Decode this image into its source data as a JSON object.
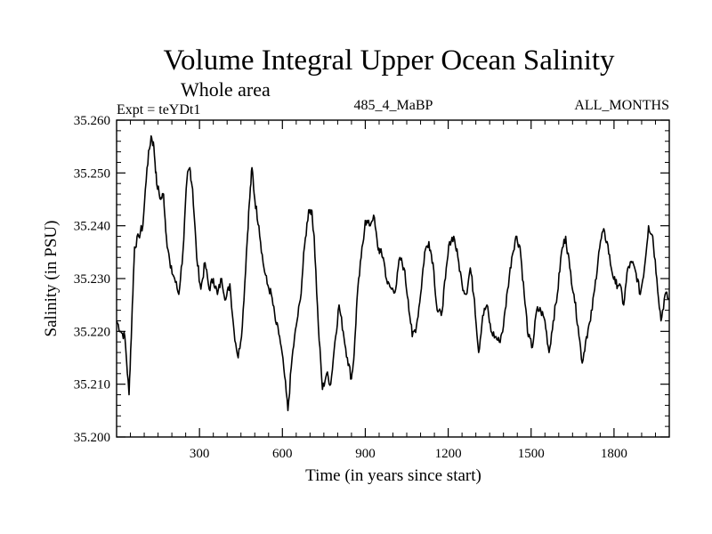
{
  "chart_data": {
    "type": "line",
    "title": "Volume Integral Upper Ocean Salinity",
    "subtitle": "Whole area",
    "header_left": "Expt = teYDt1",
    "header_center": "485_4_MaBP",
    "header_right": "ALL_MONTHS",
    "xlabel": "Time (in years since start)",
    "ylabel": "Salinity (in PSU)",
    "xlim": [
      0,
      2000
    ],
    "ylim": [
      35.2,
      35.26
    ],
    "xticks": [
      300,
      600,
      900,
      1200,
      1500,
      1800
    ],
    "xtick_labels": [
      "300",
      "600",
      "900",
      "1200",
      "1500",
      "1800"
    ],
    "yticks": [
      35.2,
      35.21,
      35.22,
      35.23,
      35.24,
      35.25,
      35.26
    ],
    "ytick_labels": [
      "35.200",
      "35.210",
      "35.220",
      "35.230",
      "35.240",
      "35.250",
      "35.260"
    ],
    "color": "#000000",
    "series": [
      {
        "name": "salinity",
        "x": [
          0,
          15,
          30,
          45,
          55,
          65,
          80,
          95,
          110,
          125,
          135,
          145,
          160,
          170,
          180,
          195,
          210,
          225,
          240,
          255,
          265,
          275,
          290,
          305,
          320,
          335,
          350,
          365,
          380,
          395,
          410,
          425,
          440,
          455,
          470,
          480,
          490,
          500,
          515,
          530,
          545,
          560,
          575,
          590,
          605,
          620,
          635,
          650,
          665,
          680,
          695,
          705,
          715,
          730,
          745,
          760,
          775,
          790,
          805,
          820,
          835,
          850,
          860,
          870,
          885,
          900,
          915,
          930,
          945,
          955,
          965,
          980,
          995,
          1010,
          1025,
          1040,
          1055,
          1070,
          1085,
          1100,
          1115,
          1130,
          1145,
          1160,
          1175,
          1190,
          1205,
          1220,
          1235,
          1250,
          1265,
          1280,
          1295,
          1310,
          1325,
          1340,
          1355,
          1370,
          1385,
          1400,
          1415,
          1430,
          1445,
          1460,
          1475,
          1490,
          1505,
          1520,
          1535,
          1550,
          1565,
          1580,
          1595,
          1610,
          1625,
          1640,
          1655,
          1670,
          1685,
          1700,
          1715,
          1730,
          1745,
          1760,
          1775,
          1790,
          1805,
          1820,
          1835,
          1850,
          1865,
          1880,
          1895,
          1910,
          1925,
          1940,
          1955,
          1970,
          1985,
          2000
        ],
        "values": [
          35.222,
          35.22,
          35.219,
          35.208,
          35.222,
          35.236,
          35.238,
          35.24,
          35.251,
          35.257,
          35.255,
          35.248,
          35.245,
          35.246,
          35.238,
          35.232,
          35.23,
          35.227,
          35.235,
          35.249,
          35.251,
          35.247,
          35.234,
          35.228,
          35.233,
          35.228,
          35.23,
          35.227,
          35.23,
          35.226,
          35.229,
          35.22,
          35.215,
          35.221,
          35.235,
          35.244,
          35.251,
          35.245,
          35.24,
          35.233,
          35.229,
          35.227,
          35.222,
          35.219,
          35.213,
          35.205,
          35.215,
          35.221,
          35.226,
          35.236,
          35.243,
          35.243,
          35.238,
          35.221,
          35.209,
          35.212,
          35.21,
          35.218,
          35.225,
          35.22,
          35.215,
          35.211,
          35.216,
          35.226,
          35.234,
          35.241,
          35.24,
          35.242,
          35.236,
          35.235,
          35.234,
          35.229,
          35.228,
          35.228,
          35.234,
          35.232,
          35.226,
          35.219,
          35.221,
          35.227,
          35.235,
          35.237,
          35.233,
          35.224,
          35.223,
          35.23,
          35.237,
          35.238,
          35.234,
          35.229,
          35.227,
          35.232,
          35.226,
          35.216,
          35.223,
          35.225,
          35.22,
          35.219,
          35.218,
          35.221,
          35.228,
          35.234,
          35.238,
          35.236,
          35.227,
          35.219,
          35.217,
          35.224,
          35.224,
          35.222,
          35.216,
          35.222,
          35.227,
          35.235,
          35.238,
          35.232,
          35.227,
          35.221,
          35.214,
          35.219,
          35.222,
          35.228,
          35.235,
          35.239,
          35.237,
          35.232,
          35.229,
          35.229,
          35.225,
          35.232,
          35.233,
          35.231,
          35.227,
          35.232,
          35.24,
          35.238,
          35.23,
          35.222,
          35.227,
          35.226
        ]
      }
    ]
  }
}
